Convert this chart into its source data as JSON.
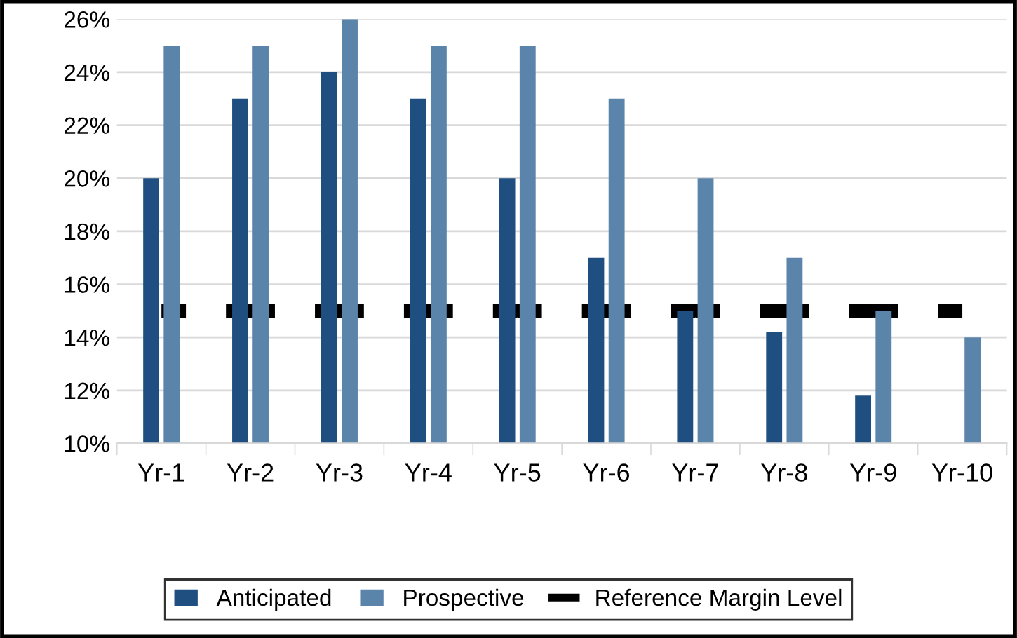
{
  "chart_data": {
    "type": "bar",
    "categories": [
      "Yr-1",
      "Yr-2",
      "Yr-3",
      "Yr-4",
      "Yr-5",
      "Yr-6",
      "Yr-7",
      "Yr-8",
      "Yr-9",
      "Yr-10"
    ],
    "series": [
      {
        "name": "Anticipated",
        "color": "#1f4e80",
        "values": [
          20,
          23,
          24,
          23,
          20,
          17,
          15,
          14.2,
          11.8,
          null
        ]
      },
      {
        "name": "Prospective",
        "color": "#5b84ab",
        "values": [
          25,
          25,
          26,
          25,
          25,
          23,
          20,
          17,
          15,
          14
        ]
      },
      {
        "name": "Reference Margin Level",
        "color": "#000000",
        "type": "line",
        "line_style": "dashed",
        "values": [
          15,
          15,
          15,
          15,
          15,
          15,
          15,
          15,
          15,
          15
        ]
      }
    ],
    "ylim": [
      10,
      26
    ],
    "yticks": [
      {
        "value": 10,
        "label": "10%"
      },
      {
        "value": 12,
        "label": "12%"
      },
      {
        "value": 14,
        "label": "14%"
      },
      {
        "value": 16,
        "label": "16%"
      },
      {
        "value": 18,
        "label": "18%"
      },
      {
        "value": 20,
        "label": "20%"
      },
      {
        "value": 22,
        "label": "22%"
      },
      {
        "value": 24,
        "label": "24%"
      },
      {
        "value": 26,
        "label": "26%"
      }
    ],
    "grid": "y",
    "legend": "bottom"
  }
}
